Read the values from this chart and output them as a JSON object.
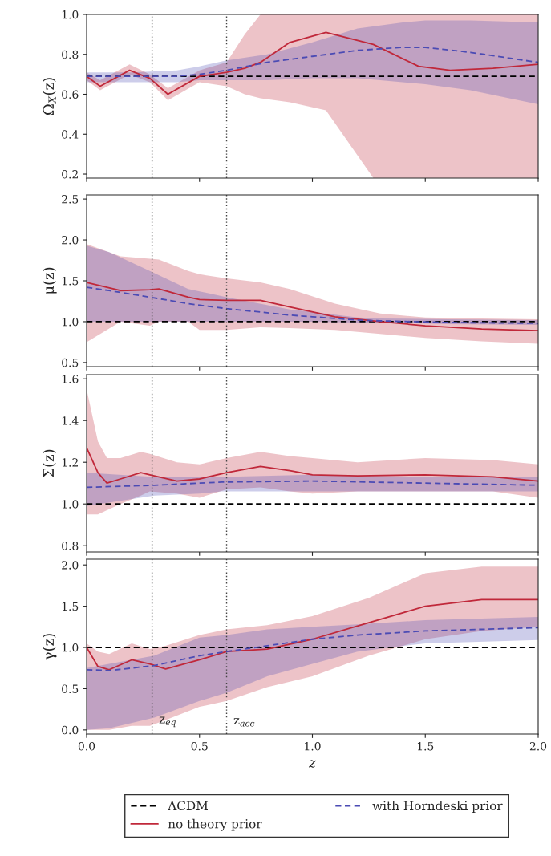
{
  "chart_data": [
    {
      "type": "line",
      "ylabel": "Ω$_{X}$(z)",
      "xlim": [
        0,
        2
      ],
      "ylim": [
        0.18,
        1.0
      ],
      "tick_labels": "y",
      "xticks": [
        {
          "value": 0,
          "label": null
        },
        {
          "value": 0.5,
          "label": null
        },
        {
          "value": 1,
          "label": null
        },
        {
          "value": 1.5,
          "label": null
        },
        {
          "value": 2,
          "label": null
        }
      ],
      "yticks": [
        0.2,
        0.4,
        0.6,
        0.8,
        {
          "value": 1,
          "label": "1.0"
        }
      ],
      "ref_lines": [
        {
          "axis": "x",
          "value": 0.29,
          "label": null,
          "color": "#444444",
          "line_style": "dotted"
        },
        {
          "axis": "x",
          "value": 0.62,
          "label": null,
          "color": "#444444",
          "line_style": "dotted"
        }
      ],
      "series": [
        {
          "color": "#000000",
          "line_style": "dashed",
          "x": [
            0,
            2
          ],
          "values": [
            0.69,
            0.69
          ]
        },
        {
          "color": "#c0283a",
          "line_style": "solid",
          "x": [
            0,
            0.06,
            0.19,
            0.28,
            0.36,
            0.5,
            0.62,
            0.7,
            0.77,
            0.9,
            1.06,
            1.27,
            1.47,
            1.61,
            1.8,
            2.0
          ],
          "values": [
            0.69,
            0.64,
            0.72,
            0.68,
            0.6,
            0.69,
            0.71,
            0.73,
            0.76,
            0.86,
            0.91,
            0.85,
            0.74,
            0.72,
            0.73,
            0.75
          ],
          "lower": [
            0.67,
            0.62,
            0.7,
            0.66,
            0.57,
            0.66,
            0.64,
            0.6,
            0.58,
            0.56,
            0.52,
            0.18,
            0.18,
            0.18,
            0.18,
            0.18
          ],
          "upper": [
            0.71,
            0.67,
            0.75,
            0.7,
            0.63,
            0.72,
            0.76,
            0.9,
            1.0,
            1.0,
            1.0,
            1.0,
            1.0,
            1.0,
            1.0,
            1.0
          ]
        },
        {
          "color": "#4b4bb4",
          "line_style": "dashed",
          "x": [
            0,
            0.2,
            0.4,
            0.5,
            0.62,
            0.8,
            1.0,
            1.2,
            1.4,
            1.5,
            1.7,
            2.0
          ],
          "values": [
            0.69,
            0.69,
            0.69,
            0.7,
            0.72,
            0.76,
            0.79,
            0.82,
            0.835,
            0.835,
            0.81,
            0.76
          ],
          "lower": [
            0.66,
            0.66,
            0.66,
            0.67,
            0.67,
            0.67,
            0.68,
            0.68,
            0.66,
            0.65,
            0.62,
            0.55
          ],
          "upper": [
            0.71,
            0.71,
            0.72,
            0.74,
            0.77,
            0.8,
            0.86,
            0.93,
            0.96,
            0.97,
            0.97,
            0.96
          ]
        }
      ]
    },
    {
      "type": "line",
      "ylabel": "μ(z)",
      "xlim": [
        0,
        2
      ],
      "ylim": [
        0.45,
        2.55
      ],
      "tick_labels": "y",
      "xticks": [
        {
          "value": 0,
          "label": null
        },
        {
          "value": 0.5,
          "label": null
        },
        {
          "value": 1,
          "label": null
        },
        {
          "value": 1.5,
          "label": null
        },
        {
          "value": 2,
          "label": null
        }
      ],
      "yticks": [
        0.5,
        {
          "value": 1,
          "label": "1.0"
        },
        1.5,
        {
          "value": 2,
          "label": "2.0"
        },
        2.5
      ],
      "ref_lines": [
        {
          "axis": "x",
          "value": 0.29,
          "label": null,
          "color": "#444444",
          "line_style": "dotted"
        },
        {
          "axis": "x",
          "value": 0.62,
          "label": null,
          "color": "#444444",
          "line_style": "dotted"
        }
      ],
      "series": [
        {
          "color": "#000000",
          "line_style": "dashed",
          "x": [
            0,
            2
          ],
          "values": [
            1.0,
            1.0
          ]
        },
        {
          "color": "#c0283a",
          "line_style": "solid",
          "x": [
            0,
            0.15,
            0.28,
            0.32,
            0.45,
            0.5,
            0.62,
            0.77,
            0.9,
            1.1,
            1.3,
            1.5,
            1.75,
            2.0
          ],
          "values": [
            1.48,
            1.38,
            1.39,
            1.4,
            1.3,
            1.27,
            1.26,
            1.26,
            1.18,
            1.06,
            1.0,
            0.95,
            0.91,
            0.89
          ],
          "lower": [
            0.75,
            1.0,
            0.95,
            1.0,
            1.0,
            0.9,
            0.9,
            0.93,
            0.92,
            0.9,
            0.85,
            0.8,
            0.76,
            0.73
          ],
          "upper": [
            1.95,
            1.8,
            1.77,
            1.76,
            1.62,
            1.58,
            1.53,
            1.48,
            1.4,
            1.22,
            1.1,
            1.05,
            1.04,
            1.03
          ]
        },
        {
          "color": "#4b4bb4",
          "line_style": "dashed",
          "x": [
            0,
            0.1,
            0.28,
            0.45,
            0.62,
            0.9,
            1.0,
            1.2,
            1.3,
            1.6,
            2.0
          ],
          "values": [
            1.42,
            1.38,
            1.3,
            1.22,
            1.16,
            1.08,
            1.06,
            1.02,
            1.01,
            0.99,
            0.98
          ],
          "lower": [
            1.0,
            1.0,
            1.0,
            1.0,
            1.0,
            1.0,
            1.0,
            0.99,
            0.99,
            0.97,
            0.96
          ],
          "upper": [
            1.93,
            1.85,
            1.62,
            1.4,
            1.3,
            1.15,
            1.12,
            1.05,
            1.04,
            1.03,
            1.02
          ]
        }
      ]
    },
    {
      "type": "line",
      "ylabel": "Σ(z)",
      "xlim": [
        0,
        2
      ],
      "ylim": [
        0.77,
        1.62
      ],
      "tick_labels": "y",
      "xticks": [
        {
          "value": 0,
          "label": null
        },
        {
          "value": 0.5,
          "label": null
        },
        {
          "value": 1,
          "label": null
        },
        {
          "value": 1.5,
          "label": null
        },
        {
          "value": 2,
          "label": null
        }
      ],
      "yticks": [
        0.8,
        {
          "value": 1,
          "label": "1.0"
        },
        1.2,
        1.4,
        1.6
      ],
      "ref_lines": [
        {
          "axis": "x",
          "value": 0.29,
          "label": null,
          "color": "#444444",
          "line_style": "dotted"
        },
        {
          "axis": "x",
          "value": 0.62,
          "label": null,
          "color": "#444444",
          "line_style": "dotted"
        }
      ],
      "series": [
        {
          "color": "#000000",
          "line_style": "dashed",
          "x": [
            0,
            2
          ],
          "values": [
            1.0,
            1.0
          ]
        },
        {
          "color": "#c0283a",
          "line_style": "solid",
          "x": [
            0,
            0.05,
            0.09,
            0.15,
            0.24,
            0.28,
            0.4,
            0.5,
            0.62,
            0.77,
            0.9,
            1.0,
            1.2,
            1.5,
            1.8,
            2.0
          ],
          "values": [
            1.27,
            1.15,
            1.1,
            1.12,
            1.15,
            1.14,
            1.11,
            1.12,
            1.15,
            1.18,
            1.16,
            1.14,
            1.135,
            1.14,
            1.13,
            1.11
          ],
          "lower": [
            0.95,
            0.95,
            0.97,
            1.0,
            1.04,
            1.06,
            1.05,
            1.03,
            1.07,
            1.08,
            1.06,
            1.05,
            1.06,
            1.06,
            1.06,
            1.03
          ],
          "upper": [
            1.55,
            1.3,
            1.22,
            1.22,
            1.25,
            1.24,
            1.2,
            1.19,
            1.22,
            1.25,
            1.23,
            1.22,
            1.2,
            1.22,
            1.21,
            1.19
          ]
        },
        {
          "color": "#4b4bb4",
          "line_style": "dashed",
          "x": [
            0,
            0.3,
            0.5,
            0.6,
            1.0,
            1.5,
            2.0
          ],
          "values": [
            1.08,
            1.09,
            1.1,
            1.105,
            1.11,
            1.1,
            1.09
          ],
          "lower": [
            0.99,
            1.04,
            1.05,
            1.06,
            1.06,
            1.06,
            1.06
          ],
          "upper": [
            1.15,
            1.13,
            1.13,
            1.13,
            1.14,
            1.13,
            1.13
          ]
        }
      ]
    },
    {
      "type": "line",
      "ylabel": "γ(z)",
      "xlabel": "z",
      "xlim": [
        0,
        2
      ],
      "ylim": [
        -0.05,
        2.07
      ],
      "legend": "bottom",
      "xticks": [
        {
          "value": 0,
          "label": "0.0"
        },
        {
          "value": 0.5,
          "label": "0.5"
        },
        {
          "value": 1,
          "label": "1.0"
        },
        {
          "value": 1.5,
          "label": "1.5"
        },
        {
          "value": 2,
          "label": "2.0"
        }
      ],
      "yticks": [
        {
          "value": 0,
          "label": "0.0"
        },
        0.5,
        {
          "value": 1,
          "label": "1.0"
        },
        1.5,
        {
          "value": 2,
          "label": "2.0"
        }
      ],
      "ref_lines": [
        {
          "axis": "x",
          "value": 0.29,
          "label": "z$_{eq}$",
          "color": "#444444",
          "line_style": "dotted"
        },
        {
          "axis": "x",
          "value": 0.62,
          "label": "z$_{acc}$",
          "color": "#444444",
          "line_style": "dotted"
        }
      ],
      "series": [
        {
          "name": "ΛCDM",
          "color": "#000000",
          "line_style": "dashed",
          "x": [
            0,
            2
          ],
          "values": [
            1.0,
            1.0
          ]
        },
        {
          "name": "no theory prior",
          "color": "#c0283a",
          "line_style": "solid",
          "x": [
            0,
            0.05,
            0.1,
            0.2,
            0.28,
            0.35,
            0.5,
            0.62,
            0.8,
            1.0,
            1.25,
            1.5,
            1.75,
            2.0
          ],
          "values": [
            1.0,
            0.77,
            0.73,
            0.85,
            0.8,
            0.74,
            0.85,
            0.95,
            0.98,
            1.1,
            1.3,
            1.5,
            1.58,
            1.58
          ],
          "lower": [
            0.0,
            0.0,
            0.0,
            0.05,
            0.05,
            0.12,
            0.28,
            0.35,
            0.52,
            0.65,
            0.9,
            1.1,
            1.2,
            1.25
          ],
          "upper": [
            1.05,
            0.95,
            0.92,
            1.05,
            0.98,
            1.02,
            1.15,
            1.22,
            1.27,
            1.38,
            1.6,
            1.9,
            1.98,
            1.98
          ]
        },
        {
          "name": "with Horndeski prior",
          "color": "#4b4bb4",
          "line_style": "dashed",
          "x": [
            0,
            0.1,
            0.3,
            0.5,
            0.62,
            0.8,
            1.0,
            1.2,
            1.5,
            2.0
          ],
          "values": [
            0.73,
            0.72,
            0.78,
            0.9,
            0.95,
            1.02,
            1.1,
            1.15,
            1.2,
            1.24
          ],
          "lower": [
            0.0,
            0.02,
            0.15,
            0.35,
            0.45,
            0.65,
            0.8,
            0.95,
            1.05,
            1.09
          ],
          "upper": [
            0.75,
            0.8,
            0.9,
            1.12,
            1.15,
            1.22,
            1.25,
            1.28,
            1.33,
            1.37
          ]
        }
      ]
    }
  ]
}
